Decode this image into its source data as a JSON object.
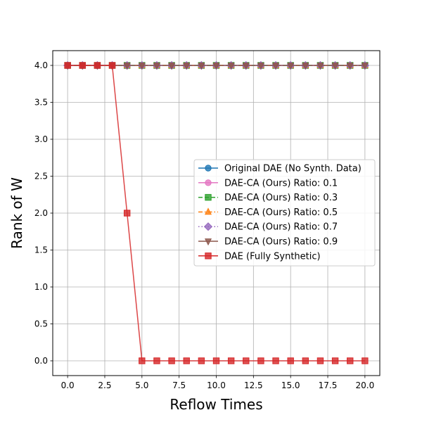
{
  "chart_data": {
    "type": "line",
    "title": "",
    "xlabel": "Reflow Times",
    "ylabel": "Rank of W",
    "xlim": [
      -1,
      21
    ],
    "ylim": [
      -0.2,
      4.2
    ],
    "x_ticks": [
      0.0,
      2.5,
      5.0,
      7.5,
      10.0,
      12.5,
      15.0,
      17.5,
      20.0
    ],
    "y_ticks": [
      0.0,
      0.5,
      1.0,
      1.5,
      2.0,
      2.5,
      3.0,
      3.5,
      4.0
    ],
    "x_tick_labels": [
      "0.0",
      "2.5",
      "5.0",
      "7.5",
      "10.0",
      "12.5",
      "15.0",
      "17.5",
      "20.0"
    ],
    "y_tick_labels": [
      "0.0",
      "0.5",
      "1.0",
      "1.5",
      "2.0",
      "2.5",
      "3.0",
      "3.5",
      "4.0"
    ],
    "grid": true,
    "legend_position": "center-right",
    "x": [
      0,
      1,
      2,
      3,
      4,
      5,
      6,
      7,
      8,
      9,
      10,
      11,
      12,
      13,
      14,
      15,
      16,
      17,
      18,
      19,
      20
    ],
    "series": [
      {
        "name": "Original DAE (No Synth. Data)",
        "color": "#1f77b4",
        "marker": "circle",
        "dash": "solid",
        "values": [
          4,
          4,
          4,
          4,
          4,
          4,
          4,
          4,
          4,
          4,
          4,
          4,
          4,
          4,
          4,
          4,
          4,
          4,
          4,
          4,
          4
        ]
      },
      {
        "name": "DAE-CA (Ours) Ratio: 0.1",
        "color": "#e377c2",
        "marker": "circle",
        "dash": "solid",
        "values": [
          4,
          4,
          4,
          4,
          4,
          4,
          4,
          4,
          4,
          4,
          4,
          4,
          4,
          4,
          4,
          4,
          4,
          4,
          4,
          4,
          4
        ]
      },
      {
        "name": "DAE-CA (Ours) Ratio: 0.3",
        "color": "#2ca02c",
        "marker": "square",
        "dash": "dashed",
        "values": [
          4,
          4,
          4,
          4,
          4,
          4,
          4,
          4,
          4,
          4,
          4,
          4,
          4,
          4,
          4,
          4,
          4,
          4,
          4,
          4,
          4
        ]
      },
      {
        "name": "DAE-CA (Ours) Ratio: 0.5",
        "color": "#ff7f0e",
        "marker": "triangle",
        "dash": "dashdot",
        "values": [
          4,
          4,
          4,
          4,
          4,
          4,
          4,
          4,
          4,
          4,
          4,
          4,
          4,
          4,
          4,
          4,
          4,
          4,
          4,
          4,
          4
        ]
      },
      {
        "name": "DAE-CA (Ours) Ratio: 0.7",
        "color": "#9467bd",
        "marker": "diamond",
        "dash": "dotted",
        "values": [
          4,
          4,
          4,
          4,
          4,
          4,
          4,
          4,
          4,
          4,
          4,
          4,
          4,
          4,
          4,
          4,
          4,
          4,
          4,
          4,
          4
        ]
      },
      {
        "name": "DAE-CA (Ours) Ratio: 0.9",
        "color": "#8c564b",
        "marker": "triangle-down",
        "dash": "solid",
        "values": [
          4,
          4,
          4,
          4,
          4,
          4,
          4,
          4,
          4,
          4,
          4,
          4,
          4,
          4,
          4,
          4,
          4,
          4,
          4,
          4,
          4
        ]
      },
      {
        "name": "DAE (Fully Synthetic)",
        "color": "#d62728",
        "marker": "square",
        "dash": "solid",
        "values": [
          4,
          4,
          4,
          4,
          2,
          0,
          0,
          0,
          0,
          0,
          0,
          0,
          0,
          0,
          0,
          0,
          0,
          0,
          0,
          0,
          0
        ]
      }
    ]
  }
}
